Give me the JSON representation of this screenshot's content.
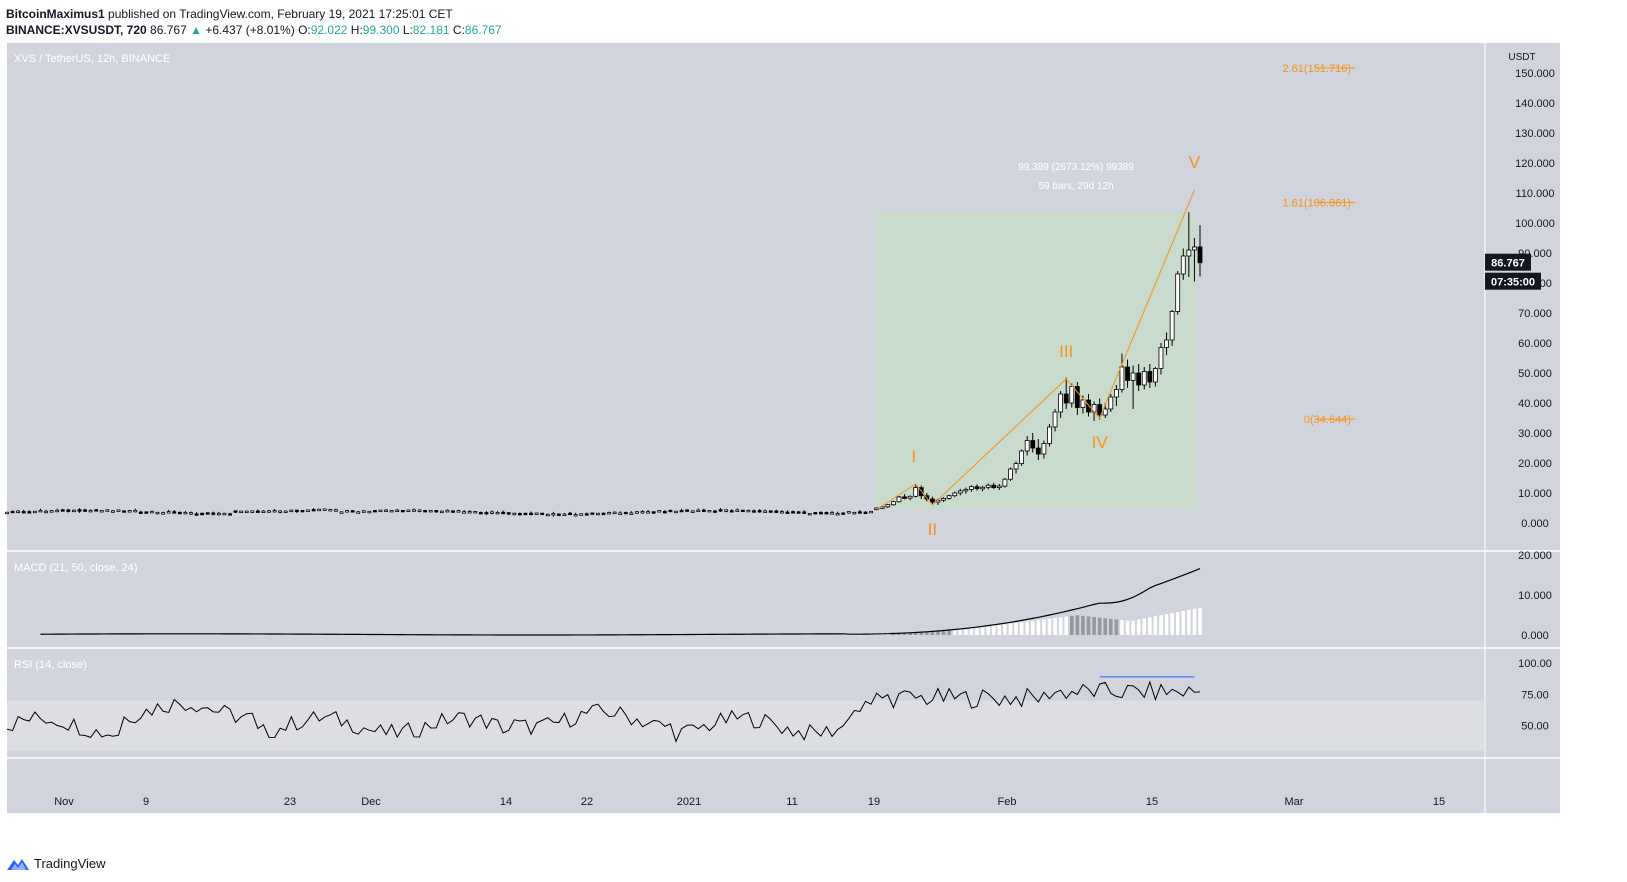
{
  "header": {
    "author": "BitcoinMaximus1",
    "published_text": "published on TradingView.com, February 19, 2021 17:25:01 CET",
    "symbol": "BINANCE:XVSUSDT, 720",
    "last": "86.767",
    "change": "+6.437 (+8.01%)",
    "o_label": "O:",
    "o_val": "92.022",
    "h_label": "H:",
    "h_val": "99.300",
    "l_label": "L:",
    "l_val": "82.181",
    "c_label": "C:",
    "c_val": "86.767"
  },
  "footer": {
    "brand": "TradingView"
  },
  "colors": {
    "pane_bg": "#d1d4dc",
    "rsi_band": "#dcdee4",
    "orange": "#f7931a",
    "box_fill": "#c8dccb",
    "rsi_line_blue": "#2962ff"
  },
  "chart_data": [
    {
      "type": "candlestick",
      "title": "XVS / TetherUS, 12h, BINANCE",
      "y_unit": "USDT",
      "ylim": [
        -9,
        160
      ],
      "y_ticks": [
        "150.000",
        "140.000",
        "130.000",
        "120.000",
        "110.000",
        "100.000",
        "90.000",
        "80.000",
        "70.000",
        "60.000",
        "50.000",
        "40.000",
        "30.000",
        "20.000",
        "10.000",
        "0.000"
      ],
      "x_ticks": [
        "Nov",
        "9",
        "23",
        "Dec",
        "14",
        "22",
        "2021",
        "11",
        "19",
        "Feb",
        "15",
        "Mar",
        "15"
      ],
      "price_label": "86.767",
      "countdown_label": "07:35:00",
      "fib_levels": [
        {
          "label": "2.61(151.716)",
          "value": 151.716
        },
        {
          "label": "1.61(106.861)",
          "value": 106.861
        },
        {
          "label": "0(34.644)",
          "value": 34.644
        }
      ],
      "waves": [
        {
          "label": "I",
          "value": 13
        },
        {
          "label": "II",
          "value": 6
        },
        {
          "label": "III",
          "value": 48
        },
        {
          "label": "IV",
          "value": 35
        },
        {
          "label": "V",
          "value": 111
        }
      ],
      "measure_box": {
        "from": 4.5,
        "to": 103.6,
        "text1": "99.389 (2673.12%) 99389",
        "text2": "59 bars, 29d 12h"
      },
      "candles_recent": [
        [
          4.5,
          5.2,
          4.2,
          5.0
        ],
        [
          5.0,
          5.6,
          4.7,
          5.4
        ],
        [
          5.4,
          6.3,
          5.0,
          6.1
        ],
        [
          6.1,
          7.4,
          5.8,
          7.1
        ],
        [
          7.1,
          9.0,
          6.8,
          8.7
        ],
        [
          8.7,
          9.6,
          7.9,
          8.3
        ],
        [
          8.3,
          9.2,
          7.6,
          8.9
        ],
        [
          8.9,
          13.0,
          8.5,
          11.8
        ],
        [
          11.8,
          12.5,
          8.0,
          9.1
        ],
        [
          9.1,
          10.0,
          7.2,
          8.0
        ],
        [
          8.0,
          8.8,
          6.3,
          7.0
        ],
        [
          7.0,
          8.1,
          6.0,
          7.6
        ],
        [
          7.6,
          8.6,
          7.0,
          8.2
        ],
        [
          8.2,
          9.4,
          7.8,
          9.1
        ],
        [
          9.1,
          10.5,
          8.6,
          10.0
        ],
        [
          10.0,
          11.4,
          9.2,
          10.7
        ],
        [
          10.7,
          11.8,
          9.8,
          11.2
        ],
        [
          11.2,
          12.6,
          10.4,
          12.1
        ],
        [
          12.1,
          12.9,
          10.8,
          11.5
        ],
        [
          11.5,
          12.4,
          10.6,
          11.9
        ],
        [
          11.9,
          13.2,
          11.2,
          12.6
        ],
        [
          12.6,
          13.4,
          11.3,
          11.8
        ],
        [
          11.8,
          13.0,
          11.0,
          12.3
        ],
        [
          12.3,
          15.0,
          11.8,
          14.6
        ],
        [
          14.6,
          18.5,
          14.0,
          18.0
        ],
        [
          18.0,
          20.5,
          16.5,
          19.8
        ],
        [
          19.8,
          24.5,
          19.0,
          24.0
        ],
        [
          24.0,
          29.0,
          22.5,
          27.5
        ],
        [
          27.5,
          30.0,
          23.5,
          25.0
        ],
        [
          25.0,
          28.0,
          21.0,
          23.0
        ],
        [
          23.0,
          27.5,
          21.5,
          26.5
        ],
        [
          26.5,
          33.0,
          25.5,
          32.0
        ],
        [
          32.0,
          38.0,
          30.5,
          37.0
        ],
        [
          37.0,
          44.0,
          35.0,
          43.0
        ],
        [
          43.0,
          48.5,
          38.0,
          40.0
        ],
        [
          40.0,
          46.5,
          38.5,
          45.5
        ],
        [
          45.5,
          47.0,
          36.0,
          38.5
        ],
        [
          38.5,
          42.5,
          36.5,
          41.0
        ],
        [
          41.0,
          43.0,
          35.5,
          37.0
        ],
        [
          37.0,
          40.5,
          34.0,
          39.5
        ],
        [
          39.5,
          41.5,
          34.5,
          36.0
        ],
        [
          36.0,
          40.0,
          35.0,
          38.0
        ],
        [
          38.0,
          43.0,
          37.0,
          42.0
        ],
        [
          42.0,
          46.0,
          39.0,
          44.5
        ],
        [
          44.5,
          56.5,
          43.5,
          52.0
        ],
        [
          52.0,
          54.5,
          45.0,
          47.5
        ],
        [
          47.5,
          52.5,
          38.0,
          50.0
        ],
        [
          50.0,
          53.0,
          44.0,
          46.0
        ],
        [
          46.0,
          52.0,
          44.5,
          50.5
        ],
        [
          50.5,
          53.0,
          45.0,
          47.0
        ],
        [
          47.0,
          52.0,
          45.5,
          51.5
        ],
        [
          51.5,
          60.0,
          49.5,
          58.5
        ],
        [
          58.5,
          63.5,
          56.0,
          61.0
        ],
        [
          61.0,
          71.0,
          59.0,
          70.5
        ],
        [
          70.5,
          84.0,
          69.5,
          83.0
        ],
        [
          83.0,
          91.5,
          81.0,
          89.0
        ],
        [
          89.0,
          103.6,
          82.0,
          91.0
        ],
        [
          91.0,
          95.0,
          80.5,
          92.0
        ],
        [
          92.022,
          99.3,
          82.181,
          86.767
        ]
      ]
    },
    {
      "type": "line",
      "title": "MACD (21, 50, close, 24)",
      "ylim": [
        -3,
        21
      ],
      "y_ticks": [
        "20.000",
        "10.000",
        "0.000"
      ]
    },
    {
      "type": "line",
      "title": "RSI (14, close)",
      "ylim": [
        25,
        112
      ],
      "y_ticks": [
        "100.00",
        "75.00",
        "50.00"
      ],
      "band": [
        30,
        70
      ]
    }
  ]
}
